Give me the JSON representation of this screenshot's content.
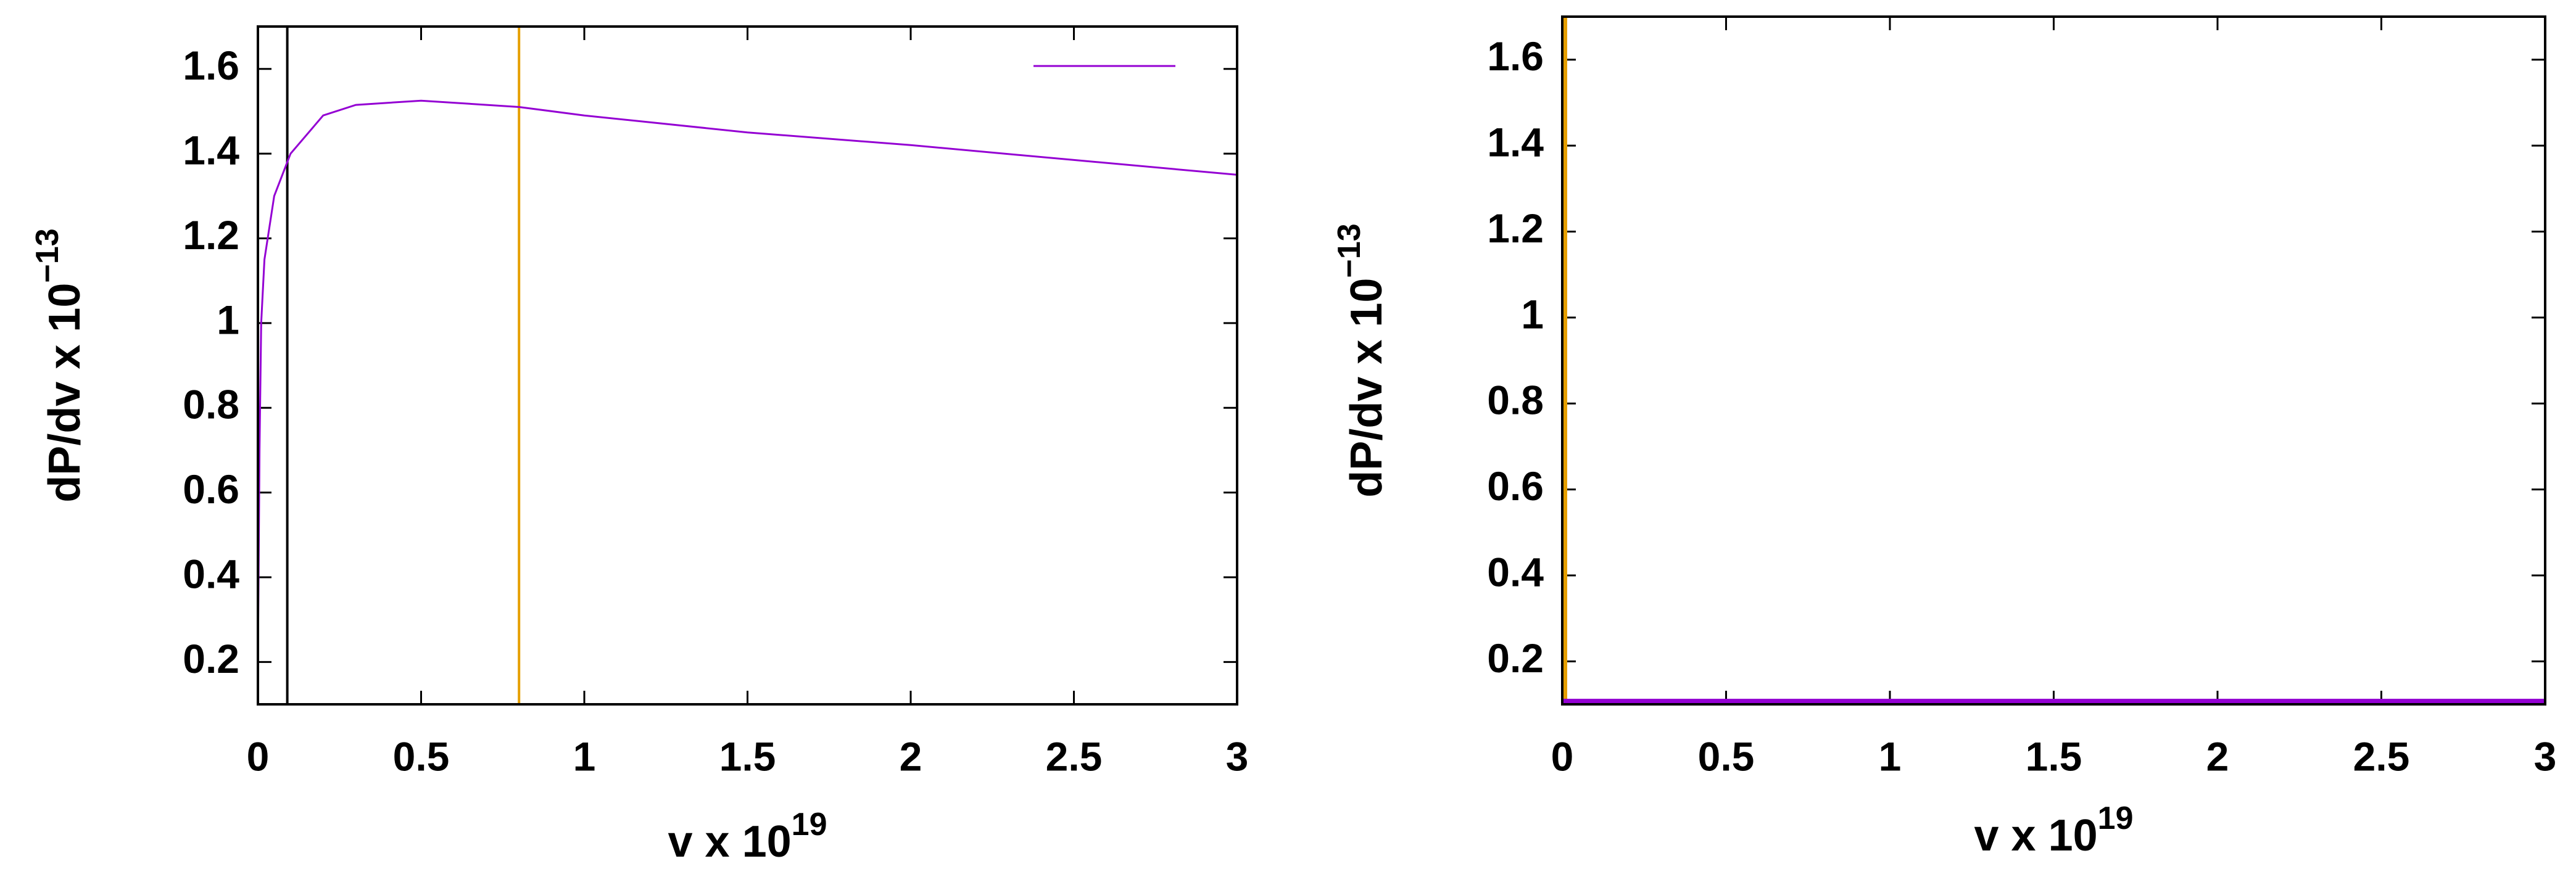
{
  "chart_data": [
    {
      "type": "line",
      "xlabel": "v x 10",
      "xlabel_exponent": "19",
      "ylabel": "dP/dv x 10",
      "ylabel_exponent": "−13",
      "xlim": [
        0,
        3
      ],
      "ylim": [
        0.1,
        1.7
      ],
      "xticks": [
        0,
        0.5,
        1,
        1.5,
        2,
        2.5,
        3
      ],
      "yticks": [
        0.2,
        0.4,
        0.6,
        0.8,
        1,
        1.2,
        1.4,
        1.6
      ],
      "series": [
        {
          "color": "#9400d3",
          "x": [
            0,
            0.005,
            0.01,
            0.02,
            0.05,
            0.1,
            0.2,
            0.3,
            0.5,
            0.8,
            1,
            1.5,
            2,
            2.5,
            3
          ],
          "values": [
            0.2,
            0.7,
            1.0,
            1.15,
            1.3,
            1.4,
            1.49,
            1.515,
            1.525,
            1.51,
            1.49,
            1.45,
            1.42,
            1.385,
            1.35
          ]
        }
      ],
      "vlines": [
        {
          "x": 0.09,
          "color": "#000000"
        },
        {
          "x": 0.8,
          "color": "#e69f00"
        }
      ],
      "legend": "top-right",
      "grid": false
    },
    {
      "type": "line",
      "xlabel": "v x 10",
      "xlabel_exponent": "19",
      "ylabel": "dP/dv x 10",
      "ylabel_exponent": "−13",
      "xlim": [
        0,
        3
      ],
      "ylim": [
        0.1,
        1.7
      ],
      "xticks": [
        0,
        0.5,
        1,
        1.5,
        2,
        2.5,
        3
      ],
      "yticks": [
        0.2,
        0.4,
        0.6,
        0.8,
        1,
        1.2,
        1.4,
        1.6
      ],
      "series": [
        {
          "color": "#9400d3",
          "x": [
            0,
            3
          ],
          "values": [
            0.1,
            0.1
          ],
          "thick": true
        }
      ],
      "vlines": [
        {
          "x": 0,
          "color": "#e69f00",
          "thick": true
        }
      ],
      "grid": false
    }
  ]
}
